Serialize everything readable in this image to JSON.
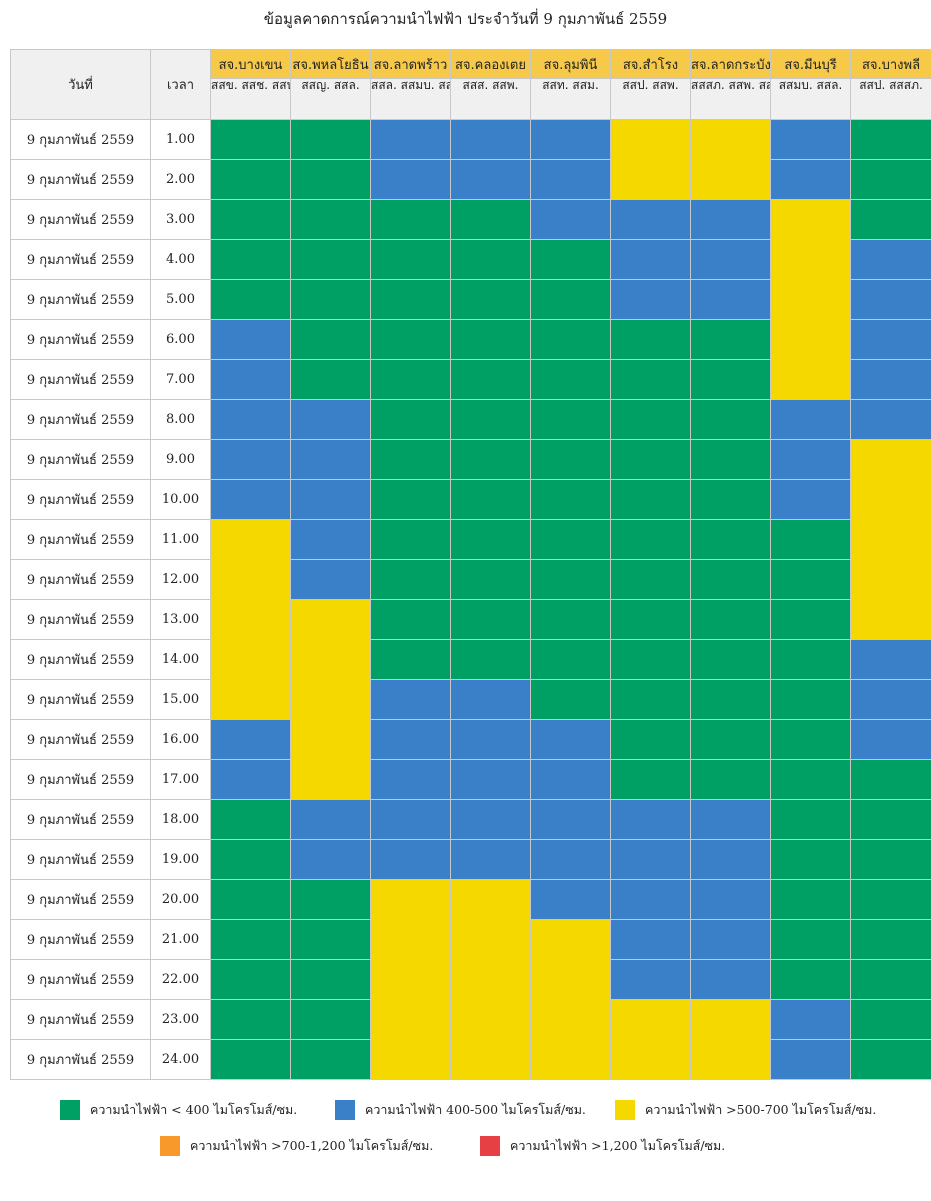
{
  "title": "ข้อมูลคาดการณ์ความนำไฟฟ้า ประจำวันที่ 9 กุมภาพันธ์ 2559",
  "headers": {
    "date": "วันที่",
    "time": "เวลา"
  },
  "stations": [
    {
      "name": "สจ.บางเขน",
      "sub": "สสข. สสช. สสน."
    },
    {
      "name": "สจ.พหลโยธิน",
      "sub": "สสญ. สสล."
    },
    {
      "name": "สจ.ลาดพร้าว",
      "sub": "สสล. สสมบ. สสข. สสส."
    },
    {
      "name": "สจ.คลองเตย",
      "sub": "สสส. สสพ."
    },
    {
      "name": "สจ.ลุมพินี",
      "sub": "สสท. สสม."
    },
    {
      "name": "สจ.สำโรง",
      "sub": "สสป. สสพ."
    },
    {
      "name": "สจ.ลาดกระบัง",
      "sub": "สสสภ. สสพ. สสส."
    },
    {
      "name": "สจ.มีนบุรี",
      "sub": "สสมบ. สสล."
    },
    {
      "name": "สจ.บางพลี",
      "sub": "สสป. สสสภ."
    }
  ],
  "colors": {
    "G": "#00a065",
    "B": "#3a80c8",
    "Y": "#f5d800",
    "O": "#f79a2b",
    "R": "#e63f44"
  },
  "rows": [
    {
      "date": "9 กุมภาพันธ์ 2559",
      "time": "1.00",
      "cells": [
        "G",
        "G",
        "B",
        "B",
        "B",
        "Y",
        "Y",
        "B",
        "G"
      ]
    },
    {
      "date": "9 กุมภาพันธ์ 2559",
      "time": "2.00",
      "cells": [
        "G",
        "G",
        "B",
        "B",
        "B",
        "Y",
        "Y",
        "B",
        "G"
      ]
    },
    {
      "date": "9 กุมภาพันธ์ 2559",
      "time": "3.00",
      "cells": [
        "G",
        "G",
        "G",
        "G",
        "B",
        "B",
        "B",
        "Y",
        "G"
      ]
    },
    {
      "date": "9 กุมภาพันธ์ 2559",
      "time": "4.00",
      "cells": [
        "G",
        "G",
        "G",
        "G",
        "G",
        "B",
        "B",
        "Y",
        "B"
      ]
    },
    {
      "date": "9 กุมภาพันธ์ 2559",
      "time": "5.00",
      "cells": [
        "G",
        "G",
        "G",
        "G",
        "G",
        "B",
        "B",
        "Y",
        "B"
      ]
    },
    {
      "date": "9 กุมภาพันธ์ 2559",
      "time": "6.00",
      "cells": [
        "B",
        "G",
        "G",
        "G",
        "G",
        "G",
        "G",
        "Y",
        "B"
      ]
    },
    {
      "date": "9 กุมภาพันธ์ 2559",
      "time": "7.00",
      "cells": [
        "B",
        "G",
        "G",
        "G",
        "G",
        "G",
        "G",
        "Y",
        "B"
      ]
    },
    {
      "date": "9 กุมภาพันธ์ 2559",
      "time": "8.00",
      "cells": [
        "B",
        "B",
        "G",
        "G",
        "G",
        "G",
        "G",
        "B",
        "B"
      ]
    },
    {
      "date": "9 กุมภาพันธ์ 2559",
      "time": "9.00",
      "cells": [
        "B",
        "B",
        "G",
        "G",
        "G",
        "G",
        "G",
        "B",
        "Y"
      ]
    },
    {
      "date": "9 กุมภาพันธ์ 2559",
      "time": "10.00",
      "cells": [
        "B",
        "B",
        "G",
        "G",
        "G",
        "G",
        "G",
        "B",
        "Y"
      ]
    },
    {
      "date": "9 กุมภาพันธ์ 2559",
      "time": "11.00",
      "cells": [
        "Y",
        "B",
        "G",
        "G",
        "G",
        "G",
        "G",
        "G",
        "Y"
      ]
    },
    {
      "date": "9 กุมภาพันธ์ 2559",
      "time": "12.00",
      "cells": [
        "Y",
        "B",
        "G",
        "G",
        "G",
        "G",
        "G",
        "G",
        "Y"
      ]
    },
    {
      "date": "9 กุมภาพันธ์ 2559",
      "time": "13.00",
      "cells": [
        "Y",
        "Y",
        "G",
        "G",
        "G",
        "G",
        "G",
        "G",
        "Y"
      ]
    },
    {
      "date": "9 กุมภาพันธ์ 2559",
      "time": "14.00",
      "cells": [
        "Y",
        "Y",
        "G",
        "G",
        "G",
        "G",
        "G",
        "G",
        "B"
      ]
    },
    {
      "date": "9 กุมภาพันธ์ 2559",
      "time": "15.00",
      "cells": [
        "Y",
        "Y",
        "B",
        "B",
        "G",
        "G",
        "G",
        "G",
        "B"
      ]
    },
    {
      "date": "9 กุมภาพันธ์ 2559",
      "time": "16.00",
      "cells": [
        "B",
        "Y",
        "B",
        "B",
        "B",
        "G",
        "G",
        "G",
        "B"
      ]
    },
    {
      "date": "9 กุมภาพันธ์ 2559",
      "time": "17.00",
      "cells": [
        "B",
        "Y",
        "B",
        "B",
        "B",
        "G",
        "G",
        "G",
        "G"
      ]
    },
    {
      "date": "9 กุมภาพันธ์ 2559",
      "time": "18.00",
      "cells": [
        "G",
        "B",
        "B",
        "B",
        "B",
        "B",
        "B",
        "G",
        "G"
      ]
    },
    {
      "date": "9 กุมภาพันธ์ 2559",
      "time": "19.00",
      "cells": [
        "G",
        "B",
        "B",
        "B",
        "B",
        "B",
        "B",
        "G",
        "G"
      ]
    },
    {
      "date": "9 กุมภาพันธ์ 2559",
      "time": "20.00",
      "cells": [
        "G",
        "G",
        "Y",
        "Y",
        "B",
        "B",
        "B",
        "G",
        "G"
      ]
    },
    {
      "date": "9 กุมภาพันธ์ 2559",
      "time": "21.00",
      "cells": [
        "G",
        "G",
        "Y",
        "Y",
        "Y",
        "B",
        "B",
        "G",
        "G"
      ]
    },
    {
      "date": "9 กุมภาพันธ์ 2559",
      "time": "22.00",
      "cells": [
        "G",
        "G",
        "Y",
        "Y",
        "Y",
        "B",
        "B",
        "G",
        "G"
      ]
    },
    {
      "date": "9 กุมภาพันธ์ 2559",
      "time": "23.00",
      "cells": [
        "G",
        "G",
        "Y",
        "Y",
        "Y",
        "Y",
        "Y",
        "B",
        "G"
      ]
    },
    {
      "date": "9 กุมภาพันธ์ 2559",
      "time": "24.00",
      "cells": [
        "G",
        "G",
        "Y",
        "Y",
        "Y",
        "Y",
        "Y",
        "B",
        "G"
      ]
    }
  ],
  "legend": [
    {
      "key": "G",
      "label": "ความนำไฟฟ้า < 400 ไมโครโมส์/ซม."
    },
    {
      "key": "B",
      "label": "ความนำไฟฟ้า 400-500  ไมโครโมส์/ซม."
    },
    {
      "key": "Y",
      "label": "ความนำไฟฟ้า >500-700 ไมโครโมส์/ซม."
    },
    {
      "key": "O",
      "label": "ความนำไฟฟ้า >700-1,200 ไมโครโมส์/ซม."
    },
    {
      "key": "R",
      "label": "ความนำไฟฟ้า >1,200  ไมโครโมส์/ซม."
    }
  ]
}
